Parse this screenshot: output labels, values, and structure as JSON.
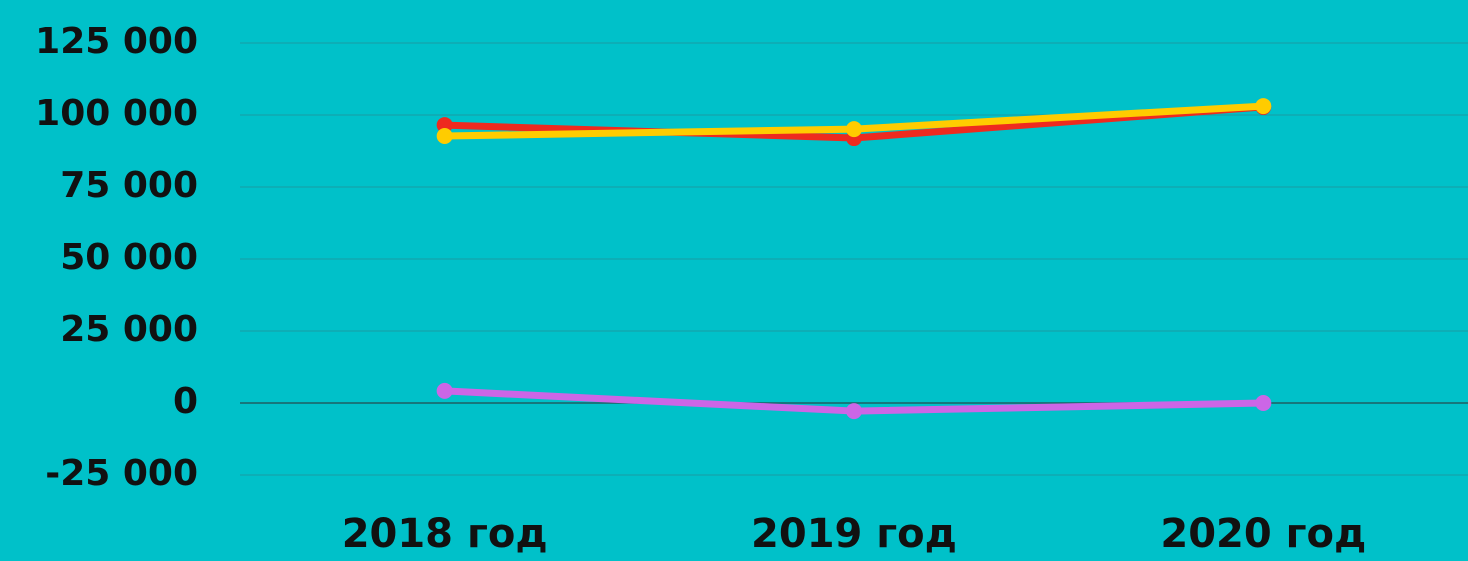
{
  "chart_data": {
    "type": "line",
    "categories": [
      "2018 год",
      "2019 год",
      "2020 год"
    ],
    "series": [
      {
        "color": "#ee2a1f",
        "values": [
          96500,
          92000,
          102800
        ]
      },
      {
        "color": "#ffcc00",
        "values": [
          92700,
          95100,
          103100
        ]
      },
      {
        "color": "#cc66e6",
        "values": [
          4200,
          -2800,
          0
        ]
      }
    ],
    "ylim": [
      -25000,
      125000
    ],
    "yticks": [
      {
        "value": -25000,
        "label": "-25 000"
      },
      0,
      {
        "value": 25000,
        "label": "25 000"
      },
      {
        "value": 50000,
        "label": "50 000"
      },
      {
        "value": 75000,
        "label": "75 000"
      },
      {
        "value": 100000,
        "label": "100 000"
      },
      {
        "value": 125000,
        "label": "125 000"
      }
    ],
    "grid": true
  }
}
